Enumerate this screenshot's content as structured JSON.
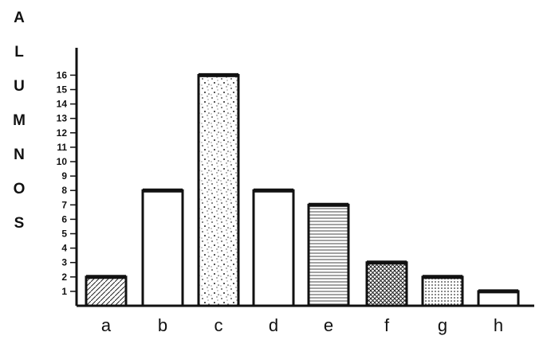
{
  "chart_data": {
    "type": "bar",
    "ylabel": "ALUMNOS",
    "xlabel": "",
    "title": "",
    "categories": [
      "a",
      "b",
      "c",
      "d",
      "e",
      "f",
      "g",
      "h"
    ],
    "values": [
      2,
      8,
      16,
      8,
      7,
      3,
      2,
      1
    ],
    "patterns": [
      "hatch",
      "plain",
      "speckle",
      "plain",
      "lines",
      "crosshatch",
      "dots",
      "plain"
    ],
    "ylim": [
      0,
      16
    ],
    "yticks": [
      1,
      2,
      3,
      4,
      5,
      6,
      7,
      8,
      9,
      10,
      11,
      12,
      13,
      14,
      15,
      16
    ],
    "grid": false,
    "legend": "none",
    "colors": {
      "ink": "#111111",
      "background": "#ffffff"
    }
  }
}
